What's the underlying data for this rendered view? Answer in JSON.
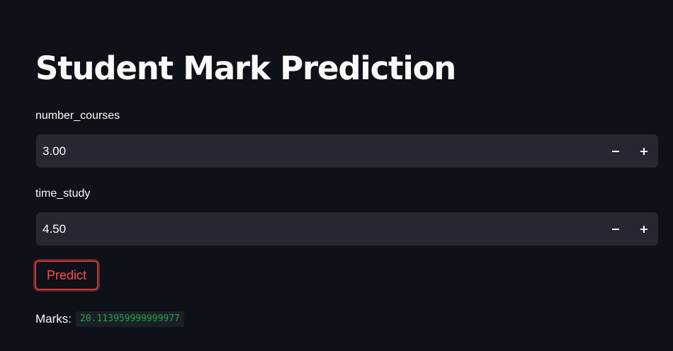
{
  "title": "Student Mark Prediction",
  "inputs": {
    "number_courses": {
      "label": "number_courses",
      "value": "3.00"
    },
    "time_study": {
      "label": "time_study",
      "value": "4.50"
    }
  },
  "icons": {
    "decrement": "minus-icon",
    "increment": "plus-icon"
  },
  "predict_button": {
    "label": "Predict"
  },
  "result": {
    "label": "Marks:",
    "value": "20.113959999999977"
  },
  "colors": {
    "background": "#0e1117",
    "input_background": "#262730",
    "text": "#fafafa",
    "accent_red": "#ff4b4b",
    "button_border": "#c23a3f",
    "result_green": "#21a346"
  }
}
